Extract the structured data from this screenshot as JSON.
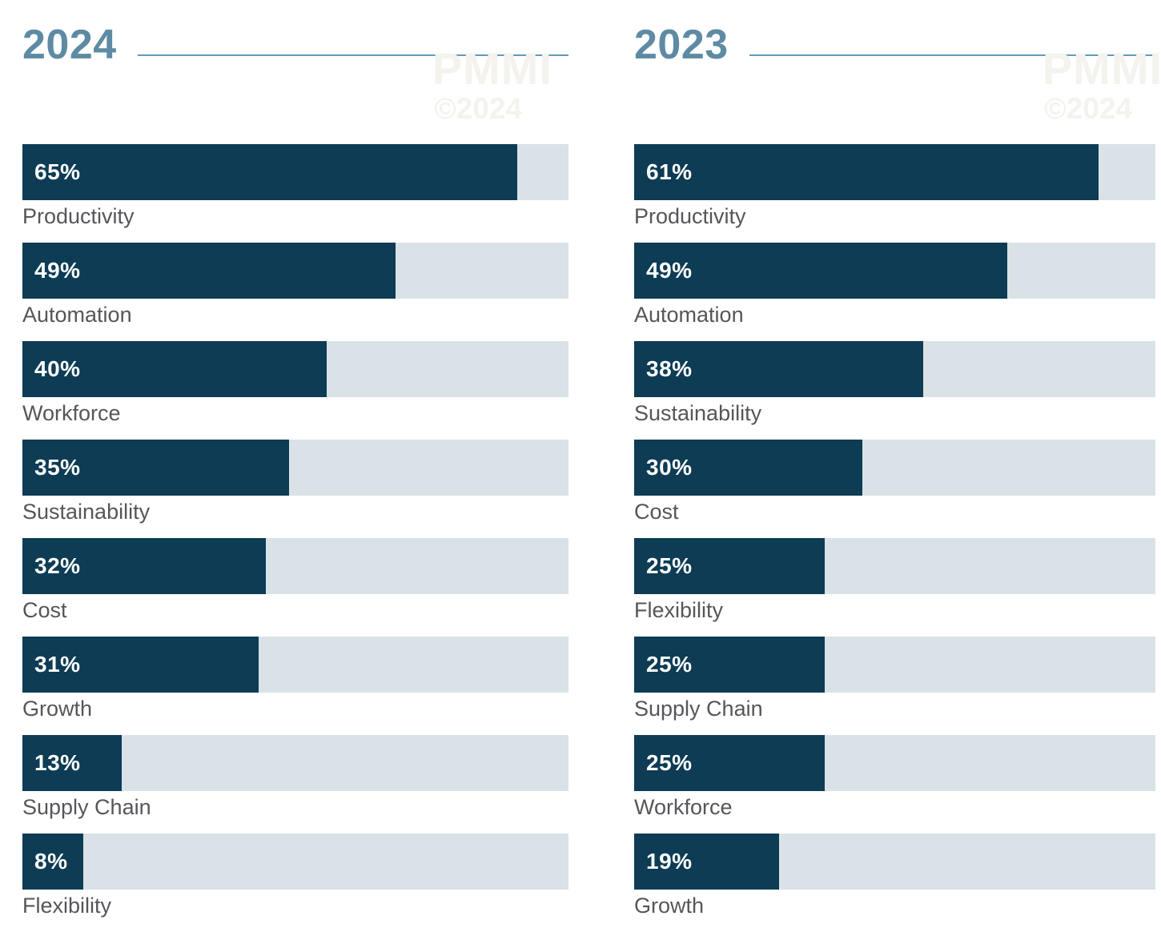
{
  "page": {
    "background": "#ffffff"
  },
  "watermark": {
    "brand": "PMMI",
    "copyright": "©2024",
    "color": "#f4f3ee"
  },
  "colors": {
    "bar_fill": "#0d3c54",
    "bar_track": "#d9e2e7",
    "title": "#5e8ba3",
    "header_rule": "#5f9cb8",
    "category_label": "#55565a",
    "value_text": "#ffffff"
  },
  "chart_data": [
    {
      "type": "bar",
      "title": "2024",
      "orientation": "horizontal",
      "unit": "%",
      "grid": false,
      "legend": false,
      "xlim": [
        0,
        71.7
      ],
      "categories": [
        "Productivity",
        "Automation",
        "Workforce",
        "Sustainability",
        "Cost",
        "Growth",
        "Supply Chain",
        "Flexibility"
      ],
      "values": [
        65,
        49,
        40,
        35,
        32,
        31,
        13,
        8
      ],
      "value_labels": [
        "65%",
        "49%",
        "40%",
        "35%",
        "32%",
        "31%",
        "13%",
        "8%"
      ]
    },
    {
      "type": "bar",
      "title": "2023",
      "orientation": "horizontal",
      "unit": "%",
      "grid": false,
      "legend": false,
      "xlim": [
        0,
        68.5
      ],
      "categories": [
        "Productivity",
        "Automation",
        "Sustainability",
        "Cost",
        "Flexibility",
        "Supply Chain",
        "Workforce",
        "Growth"
      ],
      "values": [
        61,
        49,
        38,
        30,
        25,
        25,
        25,
        19
      ],
      "value_labels": [
        "61%",
        "49%",
        "38%",
        "30%",
        "25%",
        "25%",
        "25%",
        "19%"
      ]
    }
  ]
}
